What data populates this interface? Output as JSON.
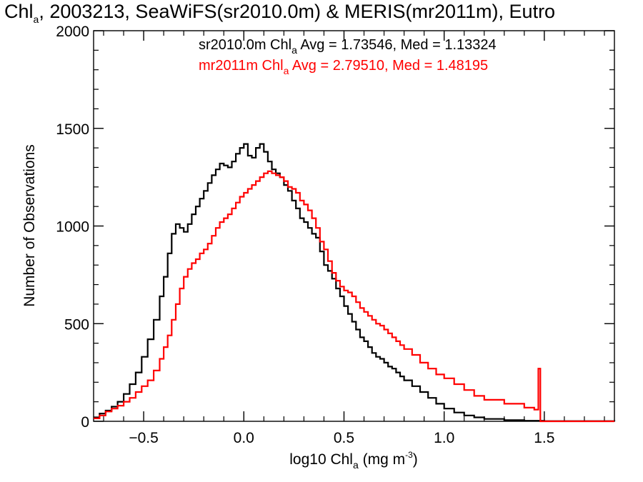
{
  "chart_data": {
    "type": "line",
    "title": {
      "prefix": "Chl",
      "sub": "a",
      "suffix": ", 2003213, SeaWiFS(sr2010.0m) & MERIS(mr2011m), Eutro"
    },
    "xlabel": {
      "prefix": "log10 Chl",
      "sub": "a",
      "mid": " (mg m",
      "sup": "-3",
      "suffix": ")"
    },
    "ylabel": "Number of Observations",
    "xlim": [
      -0.75,
      1.85
    ],
    "ylim": [
      0,
      2000
    ],
    "x_ticks": [
      -0.5,
      0.0,
      0.5,
      1.0,
      1.5
    ],
    "x_tick_labels": [
      "−0.5",
      "0.0",
      "0.5",
      "1.0",
      "1.5"
    ],
    "y_ticks": [
      0,
      500,
      1000,
      1500,
      2000
    ],
    "y_tick_labels": [
      "0",
      "500",
      "1000",
      "1500",
      "2000"
    ],
    "step": "histogram",
    "grid": false,
    "legend_position": "top-right",
    "series": [
      {
        "name": "sr2010.0m",
        "color": "#000000",
        "legend": {
          "prefix": "sr2010.0m Chl",
          "sub": "a",
          "suffix": " Avg = 1.73546, Med = 1.13324"
        },
        "points": [
          [
            -0.75,
            20
          ],
          [
            -0.72,
            40
          ],
          [
            -0.69,
            55
          ],
          [
            -0.66,
            75
          ],
          [
            -0.63,
            100
          ],
          [
            -0.6,
            140
          ],
          [
            -0.57,
            190
          ],
          [
            -0.54,
            250
          ],
          [
            -0.51,
            330
          ],
          [
            -0.48,
            420
          ],
          [
            -0.45,
            520
          ],
          [
            -0.42,
            640
          ],
          [
            -0.4,
            740
          ],
          [
            -0.38,
            860
          ],
          [
            -0.36,
            960
          ],
          [
            -0.34,
            1010
          ],
          [
            -0.32,
            990
          ],
          [
            -0.3,
            970
          ],
          [
            -0.28,
            1010
          ],
          [
            -0.26,
            1060
          ],
          [
            -0.24,
            1100
          ],
          [
            -0.22,
            1140
          ],
          [
            -0.2,
            1180
          ],
          [
            -0.18,
            1220
          ],
          [
            -0.16,
            1260
          ],
          [
            -0.14,
            1290
          ],
          [
            -0.12,
            1320
          ],
          [
            -0.1,
            1310
          ],
          [
            -0.08,
            1300
          ],
          [
            -0.06,
            1330
          ],
          [
            -0.04,
            1370
          ],
          [
            -0.02,
            1400
          ],
          [
            0.0,
            1420
          ],
          [
            0.02,
            1360
          ],
          [
            0.04,
            1350
          ],
          [
            0.06,
            1400
          ],
          [
            0.08,
            1420
          ],
          [
            0.1,
            1380
          ],
          [
            0.12,
            1330
          ],
          [
            0.14,
            1290
          ],
          [
            0.16,
            1270
          ],
          [
            0.18,
            1250
          ],
          [
            0.2,
            1210
          ],
          [
            0.22,
            1180
          ],
          [
            0.24,
            1130
          ],
          [
            0.26,
            1090
          ],
          [
            0.28,
            1040
          ],
          [
            0.3,
            1020
          ],
          [
            0.32,
            990
          ],
          [
            0.34,
            960
          ],
          [
            0.36,
            940
          ],
          [
            0.38,
            870
          ],
          [
            0.4,
            800
          ],
          [
            0.42,
            770
          ],
          [
            0.44,
            730
          ],
          [
            0.46,
            680
          ],
          [
            0.48,
            640
          ],
          [
            0.5,
            590
          ],
          [
            0.52,
            550
          ],
          [
            0.54,
            510
          ],
          [
            0.56,
            470
          ],
          [
            0.58,
            430
          ],
          [
            0.6,
            410
          ],
          [
            0.62,
            380
          ],
          [
            0.64,
            350
          ],
          [
            0.66,
            330
          ],
          [
            0.68,
            320
          ],
          [
            0.7,
            300
          ],
          [
            0.72,
            280
          ],
          [
            0.74,
            270
          ],
          [
            0.76,
            250
          ],
          [
            0.78,
            230
          ],
          [
            0.8,
            210
          ],
          [
            0.84,
            180
          ],
          [
            0.88,
            150
          ],
          [
            0.92,
            120
          ],
          [
            0.96,
            90
          ],
          [
            1.0,
            65
          ],
          [
            1.05,
            45
          ],
          [
            1.1,
            30
          ],
          [
            1.15,
            20
          ],
          [
            1.2,
            12
          ],
          [
            1.3,
            6
          ],
          [
            1.4,
            3
          ],
          [
            1.5,
            1
          ],
          [
            1.85,
            0
          ]
        ]
      },
      {
        "name": "mr2011m",
        "color": "#ff0000",
        "legend": {
          "prefix": "mr2011m Chl",
          "sub": "a",
          "suffix": " Avg = 2.79510, Med = 1.48195"
        },
        "points": [
          [
            -0.75,
            15
          ],
          [
            -0.72,
            30
          ],
          [
            -0.69,
            50
          ],
          [
            -0.66,
            65
          ],
          [
            -0.63,
            80
          ],
          [
            -0.6,
            100
          ],
          [
            -0.57,
            120
          ],
          [
            -0.54,
            150
          ],
          [
            -0.51,
            180
          ],
          [
            -0.48,
            210
          ],
          [
            -0.45,
            260
          ],
          [
            -0.42,
            320
          ],
          [
            -0.4,
            380
          ],
          [
            -0.38,
            440
          ],
          [
            -0.36,
            520
          ],
          [
            -0.34,
            600
          ],
          [
            -0.32,
            680
          ],
          [
            -0.3,
            740
          ],
          [
            -0.28,
            780
          ],
          [
            -0.26,
            810
          ],
          [
            -0.24,
            830
          ],
          [
            -0.22,
            860
          ],
          [
            -0.2,
            880
          ],
          [
            -0.18,
            910
          ],
          [
            -0.16,
            950
          ],
          [
            -0.14,
            990
          ],
          [
            -0.12,
            1020
          ],
          [
            -0.1,
            1040
          ],
          [
            -0.08,
            1060
          ],
          [
            -0.06,
            1090
          ],
          [
            -0.04,
            1120
          ],
          [
            -0.02,
            1150
          ],
          [
            0.0,
            1170
          ],
          [
            0.02,
            1190
          ],
          [
            0.04,
            1210
          ],
          [
            0.06,
            1230
          ],
          [
            0.08,
            1250
          ],
          [
            0.1,
            1270
          ],
          [
            0.12,
            1280
          ],
          [
            0.14,
            1270
          ],
          [
            0.16,
            1260
          ],
          [
            0.18,
            1250
          ],
          [
            0.2,
            1230
          ],
          [
            0.22,
            1200
          ],
          [
            0.24,
            1190
          ],
          [
            0.26,
            1170
          ],
          [
            0.28,
            1130
          ],
          [
            0.3,
            1110
          ],
          [
            0.32,
            1080
          ],
          [
            0.34,
            1040
          ],
          [
            0.36,
            990
          ],
          [
            0.38,
            920
          ],
          [
            0.4,
            880
          ],
          [
            0.42,
            820
          ],
          [
            0.44,
            760
          ],
          [
            0.46,
            720
          ],
          [
            0.48,
            690
          ],
          [
            0.5,
            670
          ],
          [
            0.52,
            660
          ],
          [
            0.54,
            640
          ],
          [
            0.56,
            610
          ],
          [
            0.58,
            580
          ],
          [
            0.6,
            560
          ],
          [
            0.62,
            540
          ],
          [
            0.64,
            520
          ],
          [
            0.66,
            500
          ],
          [
            0.68,
            490
          ],
          [
            0.7,
            470
          ],
          [
            0.72,
            450
          ],
          [
            0.74,
            430
          ],
          [
            0.76,
            410
          ],
          [
            0.78,
            390
          ],
          [
            0.8,
            370
          ],
          [
            0.84,
            340
          ],
          [
            0.88,
            300
          ],
          [
            0.92,
            270
          ],
          [
            0.96,
            240
          ],
          [
            1.0,
            220
          ],
          [
            1.05,
            190
          ],
          [
            1.1,
            160
          ],
          [
            1.15,
            130
          ],
          [
            1.2,
            110
          ],
          [
            1.3,
            90
          ],
          [
            1.4,
            70
          ],
          [
            1.45,
            60
          ],
          [
            1.47,
            270
          ],
          [
            1.48,
            0
          ],
          [
            1.85,
            0
          ]
        ]
      }
    ]
  }
}
